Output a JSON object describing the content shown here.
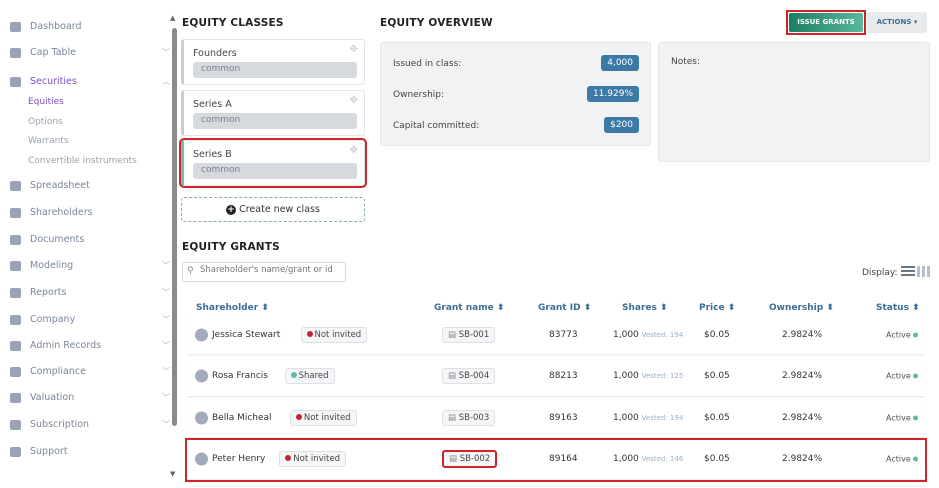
{
  "sidebar": {
    "items": [
      {
        "label": "Dashboard",
        "icon": "dashboard-icon"
      },
      {
        "label": "Cap Table",
        "icon": "pie-chart-icon",
        "chevron": "down"
      },
      {
        "label": "Securities",
        "icon": "clipboard-icon",
        "chevron": "up",
        "active": true
      },
      {
        "label": "Spreadsheet",
        "icon": "spreadsheet-icon"
      },
      {
        "label": "Shareholders",
        "icon": "user-icon"
      },
      {
        "label": "Documents",
        "icon": "folder-icon"
      },
      {
        "label": "Modeling",
        "icon": "bulb-icon",
        "chevron": "down"
      },
      {
        "label": "Reports",
        "icon": "reports-icon",
        "chevron": "down"
      },
      {
        "label": "Company",
        "icon": "building-icon",
        "chevron": "down"
      },
      {
        "label": "Admin Records",
        "icon": "records-icon",
        "chevron": "down"
      },
      {
        "label": "Compliance",
        "icon": "shield-icon",
        "chevron": "down"
      },
      {
        "label": "Valuation",
        "icon": "bar-chart-icon",
        "chevron": "down"
      },
      {
        "label": "Subscription",
        "icon": "dollar-icon",
        "chevron": "down"
      },
      {
        "label": "Support",
        "icon": "support-icon"
      }
    ],
    "securities_sub": [
      "Equities",
      "Options",
      "Warrants",
      "Convertible instruments"
    ]
  },
  "classes": {
    "title": "EQUITY CLASSES",
    "items": [
      {
        "name": "Founders",
        "type": "common"
      },
      {
        "name": "Series A",
        "type": "common"
      },
      {
        "name": "Series B",
        "type": "common",
        "selected": true
      }
    ],
    "create_label": "Create new class"
  },
  "overview": {
    "title": "EQUITY OVERVIEW",
    "issue_label": "ISSUE GRANTS",
    "actions_label": "ACTIONS",
    "issued_label": "Issued in class:",
    "issued": "4,000",
    "ownership_label": "Ownership:",
    "ownership": "11.929%",
    "capital_label": "Capital committed:",
    "capital": "$200",
    "notes_label": "Notes:"
  },
  "grants": {
    "title": "EQUITY GRANTS",
    "search_placeholder": "Shareholder's name/grant or id",
    "display_label": "Display:",
    "columns": [
      "Shareholder",
      "Grant name",
      "Grant ID",
      "Shares",
      "Price",
      "Ownership",
      "Status"
    ],
    "rows": [
      {
        "name": "Jessica Stewart",
        "invite": "Not invited",
        "invite_color": "#c0262d",
        "grant": "SB-001",
        "id": "83773",
        "shares": "1,000",
        "vested": "Vested: 194",
        "price": "$0.05",
        "ownership": "2.9824%",
        "status": "Active"
      },
      {
        "name": "Rosa Francis",
        "invite": "Shared",
        "invite_color": "#5bbf9f",
        "grant": "SB-004",
        "id": "88213",
        "shares": "1,000",
        "vested": "Vested: 125",
        "price": "$0.05",
        "ownership": "2.9824%",
        "status": "Active"
      },
      {
        "name": "Bella Micheal",
        "invite": "Not invited",
        "invite_color": "#c0262d",
        "grant": "SB-003",
        "id": "89163",
        "shares": "1,000",
        "vested": "Vested: 194",
        "price": "$0.05",
        "ownership": "2.9824%",
        "status": "Active"
      },
      {
        "name": "Peter Henry",
        "invite": "Not invited",
        "invite_color": "#c0262d",
        "grant": "SB-002",
        "id": "89164",
        "shares": "1,000",
        "vested": "Vested: 146",
        "price": "$0.05",
        "ownership": "2.9824%",
        "status": "Active",
        "highlighted": true
      }
    ]
  },
  "colors": {
    "accent": "#1f8a6e",
    "badge": "#3b7aa6",
    "active_nav": "#7b4fc4",
    "highlight": "#d0242b",
    "status_active": "#5bbf9f"
  }
}
